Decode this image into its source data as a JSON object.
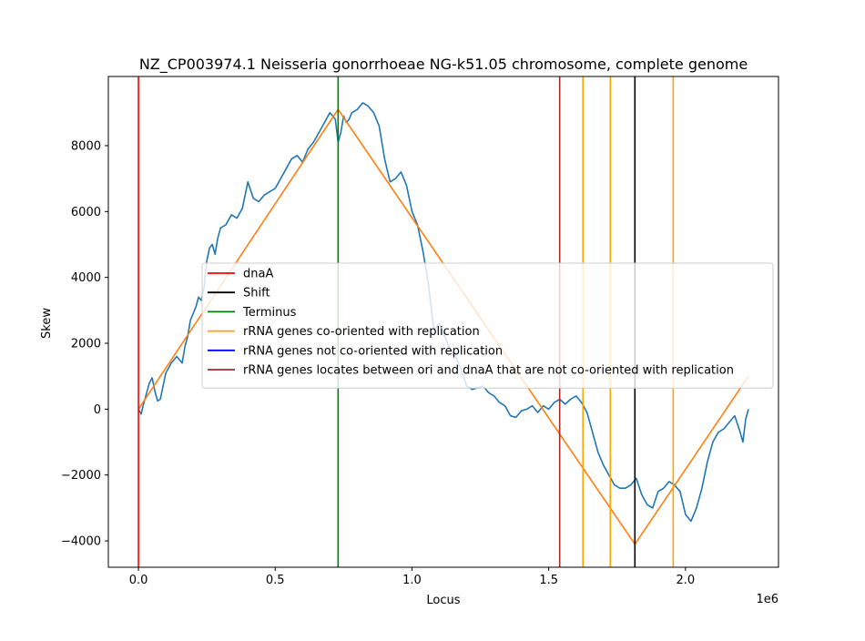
{
  "chart_data": {
    "type": "line",
    "title": "NZ_CP003974.1 Neisseria gonorrhoeae NG-k51.05 chromosome, complete genome",
    "xlabel": "Locus",
    "ylabel": "Skew",
    "x_offset_label": "1e6",
    "xlim": [
      -110000,
      2340000
    ],
    "ylim": [
      -4800,
      10100
    ],
    "x_ticks": [
      0,
      500000,
      1000000,
      1500000,
      2000000
    ],
    "x_tick_labels": [
      "0.0",
      "0.5",
      "1.0",
      "1.5",
      "2.0"
    ],
    "y_ticks": [
      -4000,
      -2000,
      0,
      2000,
      4000,
      6000,
      8000
    ],
    "y_tick_labels": [
      "−4000",
      "−2000",
      "0",
      "2000",
      "4000",
      "6000",
      "8000"
    ],
    "grid": false,
    "legend_position": "center-right",
    "series": [
      {
        "color": "#1f77b4",
        "x": [
          0,
          10000,
          20000,
          30000,
          40000,
          50000,
          60000,
          70000,
          80000,
          90000,
          100000,
          120000,
          140000,
          160000,
          170000,
          180000,
          190000,
          200000,
          210000,
          220000,
          230000,
          240000,
          250000,
          260000,
          270000,
          280000,
          290000,
          300000,
          320000,
          340000,
          360000,
          380000,
          400000,
          420000,
          440000,
          460000,
          480000,
          500000,
          520000,
          540000,
          560000,
          580000,
          600000,
          620000,
          640000,
          660000,
          680000,
          700000,
          710000,
          720000,
          730000,
          740000,
          750000,
          760000,
          770000,
          780000,
          800000,
          820000,
          840000,
          860000,
          880000,
          900000,
          920000,
          940000,
          960000,
          980000,
          1000000,
          1020000,
          1040000,
          1060000,
          1080000,
          1100000,
          1120000,
          1140000,
          1160000,
          1180000,
          1200000,
          1220000,
          1240000,
          1260000,
          1280000,
          1300000,
          1320000,
          1340000,
          1360000,
          1380000,
          1400000,
          1420000,
          1440000,
          1460000,
          1480000,
          1500000,
          1520000,
          1540000,
          1560000,
          1580000,
          1600000,
          1620000,
          1640000,
          1660000,
          1680000,
          1700000,
          1720000,
          1740000,
          1760000,
          1780000,
          1800000,
          1820000,
          1840000,
          1860000,
          1880000,
          1900000,
          1920000,
          1940000,
          1960000,
          1980000,
          2000000,
          2020000,
          2040000,
          2060000,
          2080000,
          2100000,
          2120000,
          2140000,
          2160000,
          2180000,
          2200000,
          2210000,
          2220000,
          2230000
        ],
        "y": [
          0,
          -150,
          200,
          500,
          800,
          950,
          550,
          250,
          300,
          700,
          1100,
          1400,
          1600,
          1400,
          1900,
          2200,
          2700,
          2900,
          3100,
          3400,
          3300,
          3700,
          4500,
          4900,
          5000,
          4700,
          5200,
          5500,
          5600,
          5900,
          5800,
          6100,
          6900,
          6400,
          6300,
          6500,
          6600,
          6700,
          7000,
          7300,
          7600,
          7700,
          7500,
          7900,
          8100,
          8400,
          8700,
          9000,
          8900,
          8800,
          8100,
          8400,
          8900,
          8700,
          8800,
          9000,
          9100,
          9300,
          9200,
          9000,
          8600,
          7600,
          6900,
          7000,
          7200,
          6800,
          6000,
          5600,
          4800,
          3800,
          2400,
          2600,
          2200,
          1800,
          1600,
          1200,
          700,
          600,
          650,
          700,
          500,
          400,
          200,
          100,
          -200,
          -250,
          -50,
          0,
          100,
          -100,
          100,
          0,
          200,
          300,
          150,
          300,
          400,
          200,
          -100,
          -700,
          -1300,
          -1700,
          -2000,
          -2300,
          -2400,
          -2400,
          -2300,
          -2100,
          -2600,
          -2900,
          -3000,
          -2500,
          -2400,
          -2200,
          -2300,
          -2500,
          -3200,
          -3400,
          -3000,
          -2400,
          -1600,
          -1000,
          -700,
          -600,
          -400,
          -200,
          -700,
          -1000,
          -300,
          0
        ]
      },
      {
        "color": "#ff7f0e",
        "x": [
          0,
          730000,
          1815000,
          2230000
        ],
        "y": [
          0,
          9100,
          -4100,
          1000
        ]
      }
    ],
    "vlines": [
      {
        "x": 0,
        "color": "#ff0000"
      },
      {
        "x": 730000,
        "color": "#008000"
      },
      {
        "x": 1540000,
        "color": "#a52a2a"
      },
      {
        "x": 1625000,
        "color": "#ffa500"
      },
      {
        "x": 1725000,
        "color": "#ffa500"
      },
      {
        "x": 1815000,
        "color": "#000000"
      },
      {
        "x": 1955000,
        "color": "#ffa500"
      }
    ],
    "legend": [
      {
        "label": "dnaA",
        "color": "#ff0000"
      },
      {
        "label": "Shift",
        "color": "#000000"
      },
      {
        "label": "Terminus",
        "color": "#008000"
      },
      {
        "label": "rRNA genes co-oriented with replication",
        "color": "#ffa500"
      },
      {
        "label": "rRNA genes not co-oriented with replication",
        "color": "#0000ff"
      },
      {
        "label": "rRNA genes locates between ori and dnaA that are not co-oriented with replication",
        "color": "#a52a2a"
      }
    ]
  }
}
